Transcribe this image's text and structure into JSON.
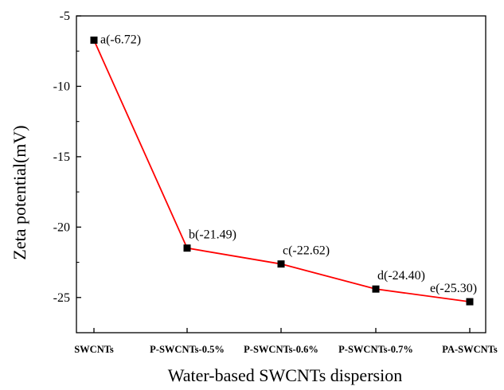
{
  "chart_data": {
    "type": "line",
    "title": "",
    "xlabel": "Water-based SWCNTs dispersion",
    "ylabel": "Zeta potential(mV)",
    "categories": [
      "SWCNTs",
      "P-SWCNTs-0.5%",
      "P-SWCNTs-0.6%",
      "P-SWCNTs-0.7%",
      "PA-SWCNTs"
    ],
    "series": [
      {
        "values": [
          -6.72,
          -21.49,
          -22.62,
          -24.4,
          -25.3
        ],
        "labels": [
          "a(-6.72)",
          "b(-21.49)",
          "c(-22.62)",
          "d(-24.40)",
          "e(-25.30)"
        ],
        "line_color": "#ff0000",
        "marker_color": "#000000"
      }
    ],
    "ylim": [
      -27.5,
      -5
    ],
    "yticks": [
      -5,
      -10,
      -15,
      -20,
      -25
    ],
    "ytick_labels": [
      "-5",
      "-10",
      "-15",
      "-20",
      "-25"
    ],
    "grid": false,
    "legend": "none"
  }
}
